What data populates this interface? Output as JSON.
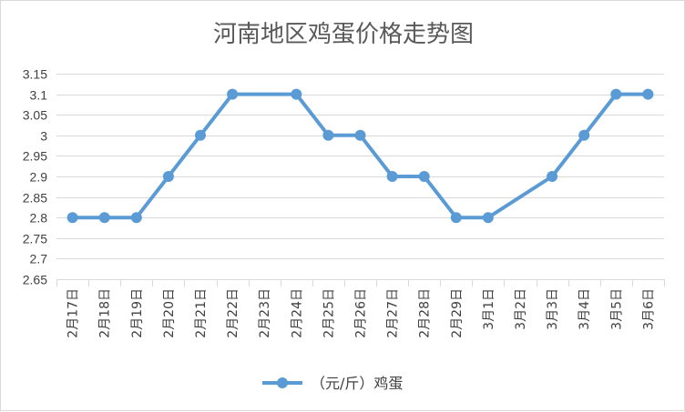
{
  "colors": {
    "series": "#5b9bd5",
    "grid": "#d9d9d9",
    "text": "#404040",
    "title": "#595959"
  },
  "chart_data": {
    "type": "line",
    "title": "河南地区鸡蛋价格走势图",
    "categories": [
      "2月17日",
      "2月18日",
      "2月19日",
      "2月20日",
      "2月21日",
      "2月22日",
      "2月23日",
      "2月24日",
      "2月25日",
      "2月26日",
      "2月27日",
      "2月28日",
      "2月29日",
      "3月1日",
      "3月2日",
      "3月3日",
      "3月4日",
      "3月5日",
      "3月6日"
    ],
    "series": [
      {
        "name": "（元/斤）鸡蛋",
        "values": [
          2.8,
          2.8,
          2.8,
          2.9,
          3.0,
          3.1,
          null,
          3.1,
          3.0,
          3.0,
          2.9,
          2.9,
          2.8,
          2.8,
          null,
          2.9,
          3.0,
          3.1,
          3.1
        ]
      }
    ],
    "yticks": [
      "3.15",
      "3.1",
      "3.05",
      "3",
      "2.95",
      "2.9",
      "2.85",
      "2.8",
      "2.75",
      "2.7",
      "2.65"
    ],
    "ylim": [
      2.65,
      3.15
    ],
    "legend_position": "bottom",
    "grid": true
  }
}
